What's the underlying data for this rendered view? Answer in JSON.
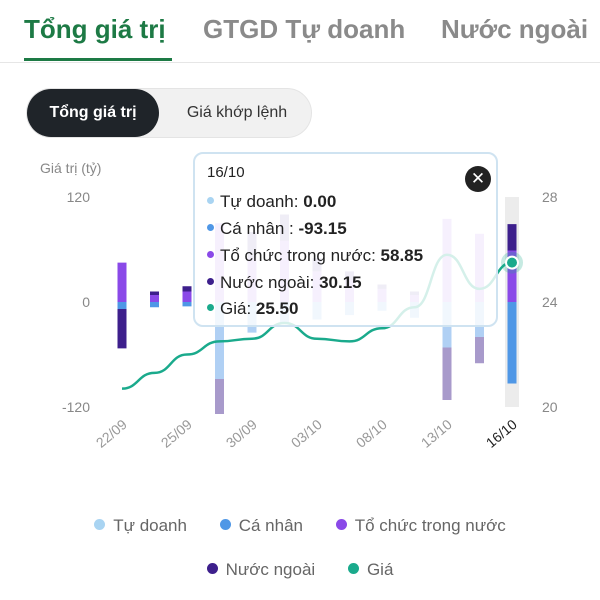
{
  "tabs": [
    {
      "label": "Tổng giá trị",
      "active": true
    },
    {
      "label": "GTGD Tự doanh",
      "active": false
    },
    {
      "label": "Nước ngoài",
      "active": false
    }
  ],
  "segment": {
    "options": [
      "Tổng giá trị",
      "Giá khớp lệnh"
    ],
    "selected": "Tổng giá trị"
  },
  "colors": {
    "accent": "#1d7a45",
    "tu_doanh": "#a9d4f2",
    "ca_nhan": "#4f97e6",
    "to_chuc": "#8a49e8",
    "nuoc_ngoai": "#3d1f8c",
    "gia": "#1aaa8c"
  },
  "chart_data": {
    "type": "bar",
    "ylabel": "Giá trị (tỷ)",
    "ylim": [
      -120,
      120
    ],
    "yticks": [
      "120",
      "0",
      "-120"
    ],
    "y2lim": [
      20,
      28
    ],
    "y2ticks": [
      "28",
      "24",
      "20"
    ],
    "xtick_labels": [
      "22/09",
      "25/09",
      "30/09",
      "03/10",
      "08/10",
      "13/10",
      "16/10"
    ],
    "xtick_index": [
      0,
      2,
      4,
      6,
      8,
      10,
      12
    ],
    "legend": [
      "Tự doanh",
      "Cá nhân",
      "Tổ chức trong nước",
      "Nước ngoài",
      "Giá"
    ],
    "highlight_index": 12,
    "series": [
      {
        "name": "Tự doanh",
        "values": [
          0,
          0,
          0,
          0,
          0,
          0,
          0,
          0,
          0,
          0,
          0,
          0,
          0
        ]
      },
      {
        "name": "Cá nhân",
        "values": [
          -8,
          -6,
          -5,
          -88,
          -35,
          -25,
          -20,
          -15,
          -10,
          -18,
          -52,
          -40,
          -93.15
        ]
      },
      {
        "name": "Tổ chức trong nước",
        "values": [
          45,
          8,
          12,
          90,
          50,
          70,
          35,
          25,
          15,
          8,
          95,
          78,
          58.85
        ]
      },
      {
        "name": "Nước ngoài",
        "values": [
          -45,
          4,
          6,
          -40,
          30,
          30,
          15,
          10,
          5,
          4,
          -60,
          -30,
          30.15
        ]
      },
      {
        "name": "Giá",
        "values": [
          20.7,
          21.3,
          22.0,
          22.5,
          22.6,
          23.2,
          22.6,
          22.5,
          23.0,
          23.8,
          25.8,
          24.5,
          25.5
        ]
      }
    ]
  },
  "tooltip": {
    "date": "16/10",
    "rows": [
      {
        "label": "Tự doanh: ",
        "value": "0.00"
      },
      {
        "label": "Cá nhân : ",
        "value": "-93.15"
      },
      {
        "label": "Tổ chức trong nước: ",
        "value": "58.85"
      },
      {
        "label": "Nước ngoài: ",
        "value": "30.15"
      },
      {
        "label": "Giá: ",
        "value": "25.50"
      }
    ]
  }
}
